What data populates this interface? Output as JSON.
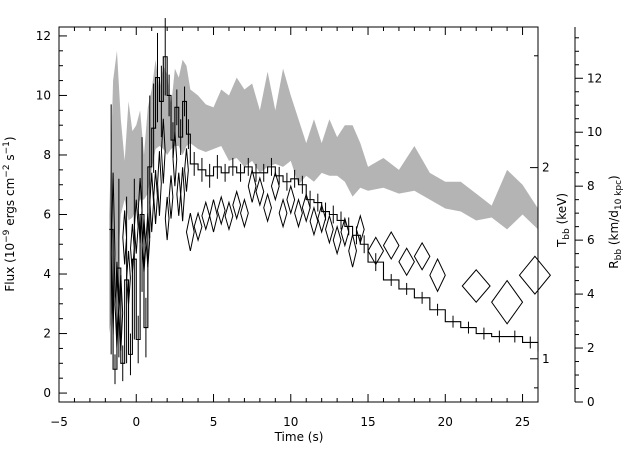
{
  "chart_data": {
    "type": "line",
    "title": "",
    "xlabel": "Time (s)",
    "ylabel_left": "Flux (10^-9 ergs cm^-2 s^-1)",
    "ylabel_right_T": "T_bb (keV)",
    "ylabel_right_R": "R_bb (km/d_10 kpc)",
    "xlim": [
      -5,
      26
    ],
    "ylim_flux": [
      -0.3,
      12.3
    ],
    "ylim_R": [
      0,
      13.9
    ],
    "xticks": [
      "-5",
      "0",
      "5",
      "10",
      "15",
      "20",
      "25"
    ],
    "yticks_flux": [
      "0",
      "2",
      "4",
      "6",
      "8",
      "10",
      "12"
    ],
    "yticks_R": [
      "0",
      "2",
      "4",
      "6",
      "8",
      "10",
      "12"
    ],
    "yticks_T": [
      "1",
      "2"
    ],
    "grid": false,
    "series": [
      {
        "style": "histogram-with-errorbars",
        "x": [
          -1.75,
          -1.5,
          -1.25,
          -1.0,
          -0.75,
          -0.5,
          -0.25,
          0.0,
          0.25,
          0.5,
          0.75,
          1.0,
          1.25,
          1.5,
          1.75,
          2.0,
          2.25,
          2.5,
          2.75,
          3.0,
          3.25,
          3.5,
          4.0,
          4.5,
          5.0,
          5.5,
          6.0,
          6.5,
          7.0,
          7.5,
          8.0,
          8.5,
          9.0,
          9.5,
          10.0,
          10.5,
          11.0,
          11.5,
          12.0,
          12.5,
          13.0,
          13.5,
          14.0,
          14.5,
          15.0,
          16.0,
          17.0,
          18.0,
          19.0,
          20.0,
          21.0,
          22.0,
          23.0,
          24.0,
          25.0,
          26.0
        ],
        "values": [
          5.5,
          0.8,
          4.2,
          1.0,
          3.8,
          1.3,
          4.5,
          1.8,
          6.0,
          2.2,
          7.6,
          8.9,
          10.6,
          9.8,
          11.3,
          10.0,
          8.5,
          9.6,
          8.6,
          9.8,
          8.7,
          7.7,
          7.5,
          7.3,
          7.6,
          7.4,
          7.6,
          7.4,
          7.6,
          7.4,
          7.4,
          7.6,
          7.3,
          7.1,
          7.2,
          7.0,
          6.5,
          6.4,
          6.1,
          6.0,
          5.8,
          5.6,
          5.3,
          5.0,
          4.4,
          3.8,
          3.5,
          3.2,
          2.8,
          2.4,
          2.2,
          2.0,
          1.9,
          1.9,
          1.7,
          1.4
        ],
        "errors": [
          4.2,
          0.5,
          3.0,
          0.6,
          2.8,
          0.7,
          2.7,
          0.8,
          2.6,
          1.0,
          2.4,
          1.5,
          1.5,
          1.2,
          1.3,
          0.7,
          0.6,
          0.6,
          0.6,
          0.5,
          0.5,
          0.4,
          0.4,
          0.4,
          0.4,
          0.3,
          0.3,
          0.3,
          0.3,
          0.3,
          0.3,
          0.3,
          0.3,
          0.3,
          0.3,
          0.3,
          0.3,
          0.3,
          0.3,
          0.3,
          0.3,
          0.3,
          0.3,
          0.3,
          0.3,
          0.2,
          0.2,
          0.2,
          0.2,
          0.2,
          0.2,
          0.2,
          0.2,
          0.2,
          0.2,
          0.2
        ]
      },
      {
        "style": "diamond",
        "name_hint": "R_bb",
        "x": [
          -1.5,
          -1.25,
          -1.0,
          -0.75,
          -0.5,
          -0.25,
          0.0,
          0.25,
          0.5,
          0.75,
          1.0,
          1.25,
          1.5,
          1.75,
          2.0,
          2.25,
          2.5,
          2.75,
          3.0,
          3.25,
          3.5,
          4.0,
          4.5,
          5.0,
          5.5,
          6.0,
          6.5,
          7.0,
          7.5,
          8.0,
          8.5,
          9.0,
          9.5,
          10.0,
          10.5,
          11.0,
          11.5,
          12.0,
          12.5,
          13.0,
          13.5,
          14.0,
          14.5,
          15.5,
          16.5,
          17.5,
          18.5,
          19.5,
          22.0,
          24.0,
          25.8
        ],
        "values": [
          5.5,
          3.6,
          3.3,
          6.1,
          4.6,
          5.7,
          6.5,
          7.1,
          5.8,
          6.0,
          7.4,
          7.6,
          8.1,
          9.3,
          6.8,
          7.6,
          9.0,
          7.7,
          7.7,
          8.6,
          6.3,
          6.5,
          6.9,
          6.9,
          7.1,
          6.9,
          7.3,
          7.0,
          8.0,
          7.8,
          7.2,
          8.0,
          7.0,
          7.5,
          7.0,
          7.2,
          6.7,
          6.8,
          6.4,
          6.0,
          6.3,
          5.6,
          6.4,
          5.6,
          5.8,
          5.2,
          5.4,
          4.7,
          4.3,
          3.7,
          4.7
        ],
        "half_heights": [
          3.0,
          1.6,
          1.4,
          1.0,
          1.0,
          0.9,
          1.0,
          1.2,
          1.0,
          1.0,
          1.1,
          1.0,
          1.2,
          1.2,
          0.8,
          0.8,
          1.0,
          0.8,
          1.0,
          0.8,
          0.7,
          0.5,
          0.5,
          0.6,
          0.5,
          0.5,
          0.5,
          0.5,
          0.6,
          0.5,
          0.5,
          0.5,
          0.5,
          0.5,
          0.5,
          0.5,
          0.5,
          0.5,
          0.5,
          0.5,
          0.5,
          0.6,
          0.5,
          0.5,
          0.5,
          0.5,
          0.5,
          0.6,
          0.6,
          0.8,
          0.7
        ],
        "half_widths": [
          0.12,
          0.12,
          0.12,
          0.12,
          0.12,
          0.12,
          0.12,
          0.12,
          0.12,
          0.12,
          0.12,
          0.12,
          0.12,
          0.12,
          0.12,
          0.12,
          0.12,
          0.12,
          0.12,
          0.12,
          0.25,
          0.25,
          0.25,
          0.25,
          0.25,
          0.25,
          0.25,
          0.25,
          0.25,
          0.25,
          0.25,
          0.25,
          0.25,
          0.25,
          0.25,
          0.25,
          0.25,
          0.25,
          0.25,
          0.25,
          0.25,
          0.25,
          0.25,
          0.5,
          0.5,
          0.5,
          0.5,
          0.5,
          0.9,
          1.0,
          1.0
        ]
      },
      {
        "style": "gray-band",
        "name_hint": "T_bb",
        "x": [
          -1.75,
          -1.5,
          -1.25,
          -1.0,
          -0.75,
          -0.5,
          -0.25,
          0.0,
          0.25,
          0.5,
          0.75,
          1.0,
          1.25,
          1.5,
          1.75,
          2.0,
          2.25,
          2.5,
          2.75,
          3.0,
          3.25,
          3.5,
          4.0,
          4.5,
          5.0,
          5.5,
          6.0,
          6.5,
          7.0,
          7.5,
          8.0,
          8.5,
          9.0,
          9.5,
          10.0,
          10.5,
          11.0,
          11.5,
          12.0,
          12.5,
          13.0,
          13.5,
          14.0,
          14.5,
          15.0,
          16.0,
          17.0,
          18.0,
          19.0,
          20.0,
          21.0,
          22.0,
          23.0,
          24.0,
          25.0,
          26.0
        ],
        "upper_flux": [
          6.0,
          10.5,
          11.5,
          9.2,
          7.8,
          9.8,
          8.8,
          9.0,
          9.5,
          8.0,
          9.6,
          10.2,
          11.2,
          10.2,
          11.0,
          10.7,
          9.6,
          10.9,
          10.6,
          11.2,
          11.0,
          10.2,
          10.0,
          9.7,
          9.6,
          10.2,
          10.0,
          10.6,
          10.2,
          10.4,
          9.5,
          10.8,
          9.5,
          10.9,
          10.0,
          9.2,
          8.4,
          9.2,
          8.4,
          9.2,
          8.6,
          9.0,
          9.0,
          8.4,
          7.6,
          7.9,
          7.5,
          8.3,
          7.4,
          7.1,
          7.1,
          6.7,
          6.3,
          7.5,
          7.0,
          6.2
        ],
        "lower_flux": [
          2.0,
          3.0,
          3.5,
          6.0,
          6.5,
          5.8,
          5.9,
          6.2,
          6.5,
          6.5,
          6.7,
          7.5,
          8.2,
          8.3,
          8.2,
          8.0,
          8.2,
          8.3,
          8.3,
          8.0,
          8.3,
          8.4,
          8.2,
          8.1,
          8.2,
          8.3,
          7.8,
          7.9,
          7.6,
          7.8,
          7.4,
          7.6,
          7.7,
          7.6,
          7.8,
          7.0,
          7.3,
          7.1,
          7.4,
          7.3,
          7.3,
          7.1,
          6.6,
          6.9,
          6.8,
          6.9,
          6.7,
          6.8,
          6.5,
          6.2,
          6.1,
          5.8,
          5.9,
          5.5,
          6.0,
          5.5
        ]
      }
    ]
  }
}
